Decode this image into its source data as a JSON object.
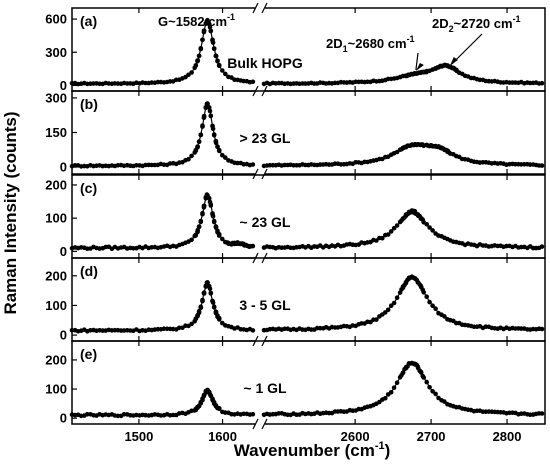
{
  "chart_data": {
    "type": "scatter",
    "xlabel_main": "Wavenumber (cm",
    "xlabel_sup": "-1",
    "xlabel_end": ")",
    "ylabel": "Raman Intensity (counts)",
    "x_segments": [
      {
        "range": [
          1420,
          1640
        ],
        "ticks": [
          1500,
          1600
        ]
      },
      {
        "range": [
          2480,
          2850
        ],
        "ticks": [
          2600,
          2700,
          2800
        ]
      }
    ],
    "panels": [
      {
        "label": "(a)",
        "sample": "Bulk HOPG",
        "ylim": [
          -50,
          700
        ],
        "yticks": [
          0,
          300,
          600
        ],
        "baseline": 15,
        "noise": 5,
        "peaks": [
          {
            "center": 1582,
            "height": 570,
            "width": 9
          },
          {
            "center": 2680,
            "height": 60,
            "width": 35
          },
          {
            "center": 2720,
            "height": 140,
            "width": 22
          }
        ],
        "annotations": [
          {
            "main": "G~1582 cm",
            "sup": "-1"
          },
          {
            "main": "2D",
            "sub": "1",
            "rest": "~2680 cm",
            "sup": "-1"
          },
          {
            "main": "2D",
            "sub": "2",
            "rest": "~2720 cm",
            "sup": "-1"
          }
        ]
      },
      {
        "label": "(b)",
        "sample": "> 23 GL",
        "ylim": [
          -30,
          330
        ],
        "yticks": [
          0,
          150,
          300
        ],
        "baseline": 5,
        "noise": 3,
        "peaks": [
          {
            "center": 1582,
            "height": 270,
            "width": 8
          },
          {
            "center": 2675,
            "height": 75,
            "width": 30
          },
          {
            "center": 2710,
            "height": 50,
            "width": 25
          }
        ]
      },
      {
        "label": "(c)",
        "sample": "~ 23 GL",
        "ylim": [
          -20,
          230
        ],
        "yticks": [
          0,
          100,
          200
        ],
        "baseline": 10,
        "noise": 3,
        "peaks": [
          {
            "center": 1582,
            "height": 160,
            "width": 8
          },
          {
            "center": 2675,
            "height": 110,
            "width": 25
          },
          {
            "center": 1620,
            "height": 8,
            "width": 6
          }
        ]
      },
      {
        "label": "(d)",
        "sample": "3 - 5 GL",
        "ylim": [
          -20,
          260
        ],
        "yticks": [
          0,
          100,
          200
        ],
        "baseline": 15,
        "noise": 3,
        "peaks": [
          {
            "center": 1582,
            "height": 160,
            "width": 8
          },
          {
            "center": 2675,
            "height": 180,
            "width": 25
          }
        ]
      },
      {
        "label": "(e)",
        "sample": "~ 1 GL",
        "ylim": [
          -20,
          265
        ],
        "yticks": [
          0,
          100,
          200
        ],
        "baseline": 10,
        "noise": 3,
        "peaks": [
          {
            "center": 1582,
            "height": 85,
            "width": 8
          },
          {
            "center": 2675,
            "height": 180,
            "width": 25
          }
        ]
      }
    ]
  }
}
